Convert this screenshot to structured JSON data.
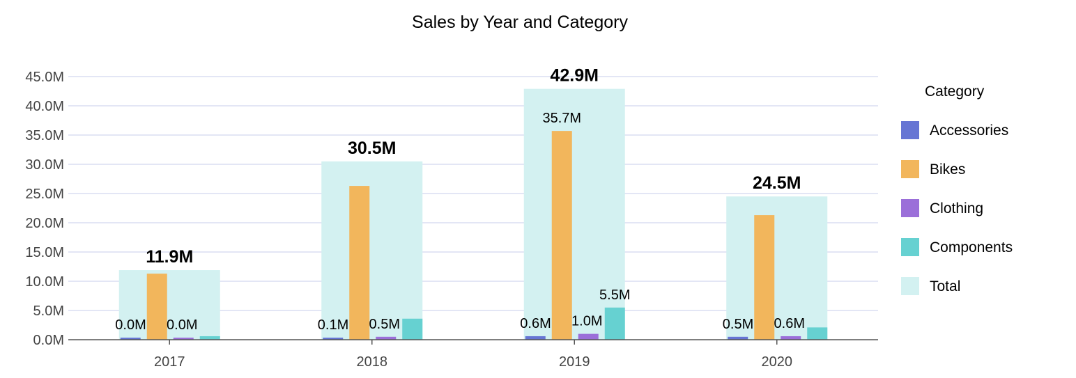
{
  "chart_data": {
    "type": "bar",
    "title": "Sales by Year and Category",
    "xlabel": "",
    "ylabel": "",
    "categories": [
      "2017",
      "2018",
      "2019",
      "2020"
    ],
    "ylim": [
      0,
      45
    ],
    "yticks": [
      "0.0M",
      "5.0M",
      "10.0M",
      "15.0M",
      "20.0M",
      "25.0M",
      "30.0M",
      "35.0M",
      "40.0M",
      "45.0M"
    ],
    "grid": true,
    "legend": {
      "title": "Category",
      "placement": "right",
      "entries": [
        "Accessories",
        "Bikes",
        "Clothing",
        "Components",
        "Total"
      ]
    },
    "unit": "M",
    "total": {
      "name": "Total",
      "color": "#d3f1f1",
      "values": [
        11.9,
        30.5,
        42.9,
        24.5
      ],
      "labels": [
        "11.9M",
        "30.5M",
        "42.9M",
        "24.5M"
      ]
    },
    "series": [
      {
        "name": "Accessories",
        "color": "#6675d4",
        "values": [
          0.0,
          0.1,
          0.6,
          0.5
        ],
        "labels": [
          "0.0M",
          "0.1M",
          "0.6M",
          "0.5M"
        ]
      },
      {
        "name": "Bikes",
        "color": "#f2b65c",
        "values": [
          11.3,
          26.3,
          35.7,
          21.3
        ],
        "labels": [
          "",
          "",
          "35.7M",
          ""
        ]
      },
      {
        "name": "Clothing",
        "color": "#9b6fd9",
        "values": [
          0.0,
          0.5,
          1.0,
          0.6
        ],
        "labels": [
          "0.0M",
          "0.5M",
          "1.0M",
          "0.6M"
        ]
      },
      {
        "name": "Components",
        "color": "#66d1d1",
        "values": [
          0.6,
          3.6,
          5.5,
          2.1
        ],
        "labels": [
          "",
          "",
          "5.5M",
          ""
        ]
      }
    ]
  }
}
